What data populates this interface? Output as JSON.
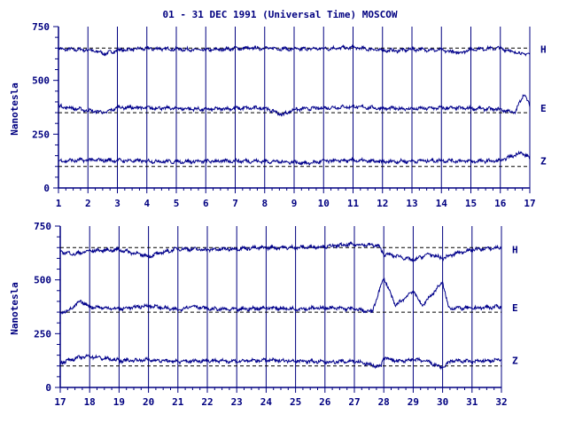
{
  "title": "01 - 31 DEC 1991 (Universal Time) MOSCOW",
  "colors": {
    "ink": "#000080",
    "trace": "#00008b",
    "background": "#ffffff"
  },
  "chart_data": [
    {
      "type": "line",
      "ylabel": "Nanotesla",
      "xlim": [
        1,
        17
      ],
      "ylim": [
        0,
        750
      ],
      "yticks": [
        0,
        250,
        500,
        750
      ],
      "xticks": [
        1,
        2,
        3,
        4,
        5,
        6,
        7,
        8,
        9,
        10,
        11,
        12,
        13,
        14,
        15,
        16,
        17
      ],
      "grid": "vertical lines at each day",
      "baselines": [
        {
          "component": "H",
          "value": 650
        },
        {
          "component": "E",
          "value": 350
        },
        {
          "component": "Z",
          "value": 100
        }
      ],
      "series": [
        {
          "name": "H",
          "mean": 645,
          "points": [
            [
              1,
              645
            ],
            [
              2,
              642
            ],
            [
              2.6,
              625
            ],
            [
              3,
              640
            ],
            [
              4,
              648
            ],
            [
              5,
              645
            ],
            [
              6,
              640
            ],
            [
              7,
              648
            ],
            [
              8,
              650
            ],
            [
              9,
              645
            ],
            [
              10,
              648
            ],
            [
              11,
              652
            ],
            [
              12,
              640
            ],
            [
              12.5,
              638
            ],
            [
              13,
              645
            ],
            [
              14,
              640
            ],
            [
              14.6,
              628
            ],
            [
              15,
              645
            ],
            [
              16,
              650
            ],
            [
              16.5,
              630
            ],
            [
              17,
              620
            ]
          ]
        },
        {
          "name": "E",
          "mean": 370,
          "points": [
            [
              1,
              380
            ],
            [
              2,
              360
            ],
            [
              2.6,
              350
            ],
            [
              3,
              375
            ],
            [
              4,
              372
            ],
            [
              5,
              370
            ],
            [
              6,
              365
            ],
            [
              7,
              370
            ],
            [
              8,
              372
            ],
            [
              8.6,
              340
            ],
            [
              9,
              365
            ],
            [
              10,
              372
            ],
            [
              11,
              378
            ],
            [
              12,
              370
            ],
            [
              13,
              368
            ],
            [
              14,
              372
            ],
            [
              15,
              370
            ],
            [
              16,
              365
            ],
            [
              16.5,
              350
            ],
            [
              16.8,
              440
            ],
            [
              17,
              380
            ]
          ]
        },
        {
          "name": "Z",
          "mean": 125,
          "points": [
            [
              1,
              125
            ],
            [
              2,
              130
            ],
            [
              3,
              128
            ],
            [
              4,
              125
            ],
            [
              5,
              122
            ],
            [
              6,
              124
            ],
            [
              7,
              126
            ],
            [
              8,
              124
            ],
            [
              9,
              120
            ],
            [
              9.5,
              115
            ],
            [
              10,
              125
            ],
            [
              11,
              128
            ],
            [
              12,
              122
            ],
            [
              13,
              125
            ],
            [
              14,
              128
            ],
            [
              15,
              124
            ],
            [
              16,
              126
            ],
            [
              16.7,
              165
            ],
            [
              17,
              140
            ]
          ]
        }
      ]
    },
    {
      "type": "line",
      "ylabel": "Nanotesla",
      "xlim": [
        17,
        32
      ],
      "ylim": [
        0,
        750
      ],
      "yticks": [
        0,
        250,
        500,
        750
      ],
      "xticks": [
        17,
        18,
        19,
        20,
        21,
        22,
        23,
        24,
        25,
        26,
        27,
        28,
        29,
        30,
        31,
        32
      ],
      "grid": "vertical lines at each day",
      "baselines": [
        {
          "component": "H",
          "value": 650
        },
        {
          "component": "E",
          "value": 350
        },
        {
          "component": "Z",
          "value": 100
        }
      ],
      "series": [
        {
          "name": "H",
          "mean": 640,
          "points": [
            [
              17,
              630
            ],
            [
              17.5,
              620
            ],
            [
              18,
              635
            ],
            [
              19,
              640
            ],
            [
              19.5,
              625
            ],
            [
              20,
              610
            ],
            [
              21,
              645
            ],
            [
              22,
              640
            ],
            [
              23,
              645
            ],
            [
              24,
              650
            ],
            [
              25,
              650
            ],
            [
              26,
              655
            ],
            [
              27,
              665
            ],
            [
              27.8,
              660
            ],
            [
              28,
              620
            ],
            [
              28.5,
              610
            ],
            [
              29,
              590
            ],
            [
              29.5,
              620
            ],
            [
              30,
              600
            ],
            [
              30.5,
              625
            ],
            [
              31,
              640
            ],
            [
              32,
              650
            ]
          ]
        },
        {
          "name": "E",
          "mean": 370,
          "points": [
            [
              17,
              345
            ],
            [
              17.3,
              360
            ],
            [
              17.7,
              400
            ],
            [
              18,
              375
            ],
            [
              19,
              365
            ],
            [
              20,
              380
            ],
            [
              21,
              360
            ],
            [
              21.5,
              380
            ],
            [
              22,
              365
            ],
            [
              23,
              362
            ],
            [
              24,
              370
            ],
            [
              25,
              365
            ],
            [
              26,
              370
            ],
            [
              27,
              365
            ],
            [
              27.6,
              350
            ],
            [
              28,
              510
            ],
            [
              28.4,
              380
            ],
            [
              29,
              450
            ],
            [
              29.3,
              380
            ],
            [
              30,
              490
            ],
            [
              30.2,
              370
            ],
            [
              31,
              368
            ],
            [
              32,
              375
            ]
          ]
        },
        {
          "name": "Z",
          "mean": 125,
          "points": [
            [
              17,
              115
            ],
            [
              17.5,
              135
            ],
            [
              18,
              145
            ],
            [
              19,
              125
            ],
            [
              20,
              128
            ],
            [
              21,
              120
            ],
            [
              22,
              125
            ],
            [
              23,
              122
            ],
            [
              24,
              126
            ],
            [
              25,
              124
            ],
            [
              26,
              118
            ],
            [
              27,
              122
            ],
            [
              27.9,
              95
            ],
            [
              28,
              140
            ],
            [
              28.5,
              120
            ],
            [
              29,
              130
            ],
            [
              29.5,
              120
            ],
            [
              30,
              90
            ],
            [
              30.3,
              125
            ],
            [
              31,
              120
            ],
            [
              32,
              128
            ]
          ]
        }
      ]
    }
  ]
}
